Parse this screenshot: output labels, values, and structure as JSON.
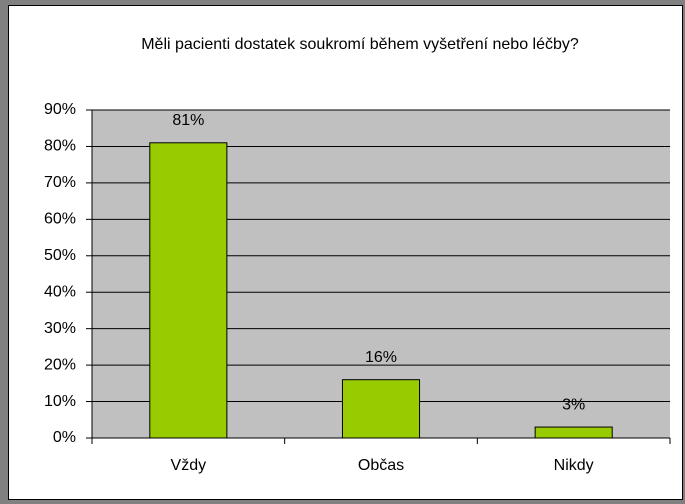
{
  "chart_data": {
    "type": "bar",
    "title": "Měli pacienti dostatek soukromí během vyšetření nebo léčby?",
    "categories": [
      "Vždy",
      "Občas",
      "Nikdy"
    ],
    "values": [
      81,
      16,
      3
    ],
    "value_labels": [
      "81%",
      "16%",
      "3%"
    ],
    "color": "#99cc00",
    "ylim": [
      0,
      90
    ],
    "yticks": [
      {
        "value": 0,
        "label": "0%"
      },
      {
        "value": 10,
        "label": "10%"
      },
      {
        "value": 20,
        "label": "20%"
      },
      {
        "value": 30,
        "label": "30%"
      },
      {
        "value": 40,
        "label": "40%"
      },
      {
        "value": 50,
        "label": "50%"
      },
      {
        "value": 60,
        "label": "60%"
      },
      {
        "value": 70,
        "label": "70%"
      },
      {
        "value": 80,
        "label": "80%"
      },
      {
        "value": 90,
        "label": "90%"
      }
    ],
    "grid": true
  }
}
